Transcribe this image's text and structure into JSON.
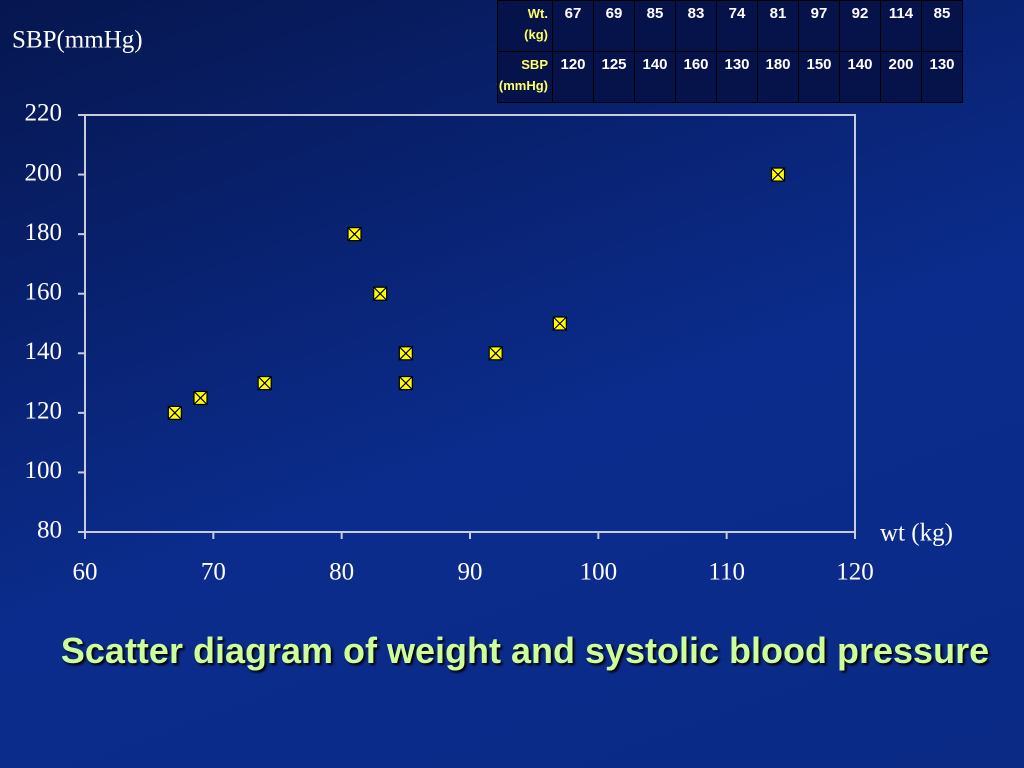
{
  "chart_data": {
    "type": "scatter",
    "title": "Scatter diagram of weight and systolic blood pressure",
    "xlabel": "wt (kg)",
    "ylabel": "SBP(mmHg)",
    "x": [
      67,
      69,
      85,
      83,
      74,
      81,
      97,
      92,
      114,
      85
    ],
    "y": [
      120,
      125,
      140,
      160,
      130,
      180,
      150,
      140,
      200,
      130
    ],
    "color": "#ffff00",
    "xlim": [
      60,
      120
    ],
    "xticks": [
      60,
      70,
      80,
      90,
      100,
      110,
      120
    ],
    "ylim": [
      80,
      220
    ],
    "yticks": [
      80,
      100,
      120,
      140,
      160,
      180,
      200,
      220
    ],
    "grid": false
  },
  "table": {
    "row_headers": [
      [
        "Wt.",
        "(kg)"
      ],
      [
        "SBP",
        "(mmHg)"
      ]
    ]
  }
}
